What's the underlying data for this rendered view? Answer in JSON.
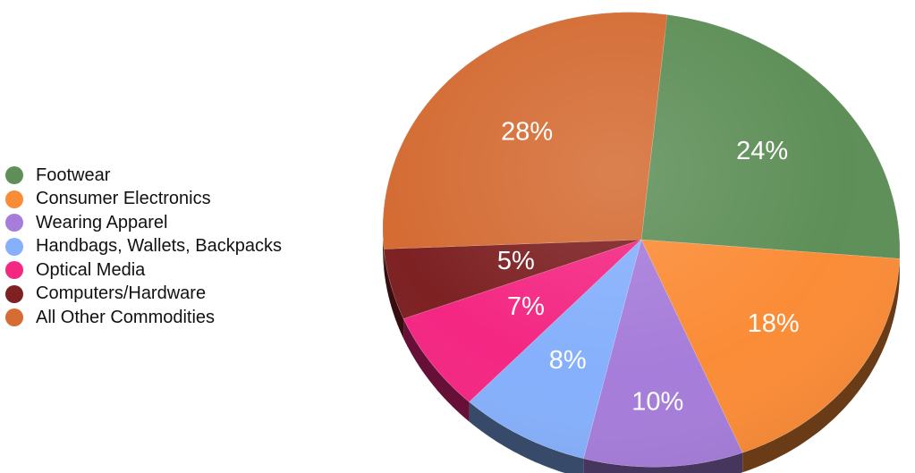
{
  "chart_data": {
    "type": "pie",
    "title": "",
    "categories": [
      "Footwear",
      "Consumer Electronics",
      "Wearing Apparel",
      "Handbags, Wallets, Backpacks",
      "Optical Media",
      "Computers/Hardware",
      "All Other Commodities"
    ],
    "values": [
      24,
      18,
      10,
      8,
      7,
      5,
      28
    ],
    "data_labels": [
      "24%",
      "18%",
      "10%",
      "8%",
      "7%",
      "5%",
      "28%"
    ],
    "colors": [
      "#5e8f58",
      "#fb8c37",
      "#a67dda",
      "#86b0fc",
      "#f42783",
      "#7d2123",
      "#d46c34"
    ],
    "legend_position": "left",
    "style": "3d-tilted"
  }
}
